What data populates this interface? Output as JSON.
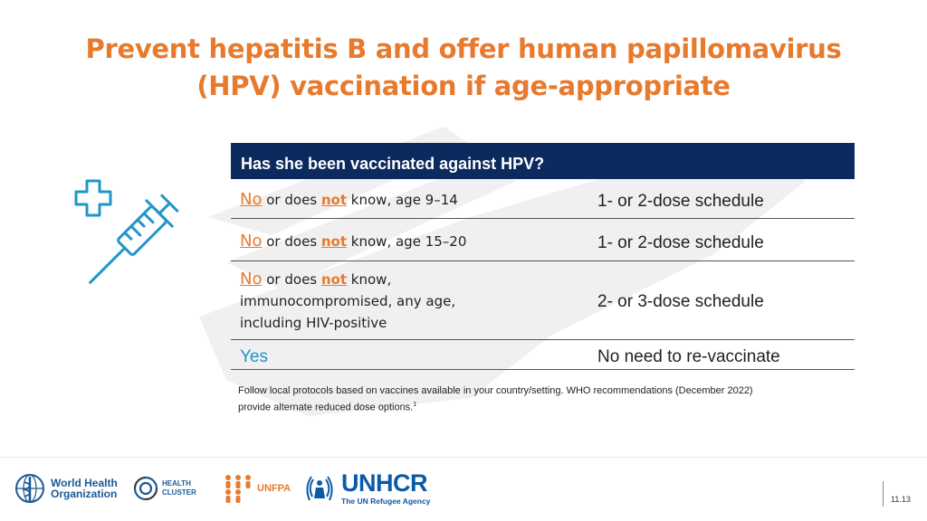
{
  "slide": {
    "title_line1": "Prevent hepatitis B and offer human papillomavirus",
    "title_line2": "(HPV) vaccination if age-appropriate",
    "accent_color": "#e87a2e",
    "header_color": "#0d2a5e",
    "page_number": "11.13"
  },
  "table": {
    "header": "Has she been vaccinated against HPV?",
    "rows": [
      {
        "no": "No",
        "mid": " or does ",
        "not": "not",
        "rest": " know, age 9–14",
        "schedule": "1- or 2-dose schedule"
      },
      {
        "no": "No",
        "mid": " or does ",
        "not": "not",
        "rest": " know, age 15–20",
        "schedule": "1- or 2-dose schedule"
      },
      {
        "no": "No",
        "mid": " or does ",
        "not": "not",
        "rest_line1": " know,",
        "rest_line2": "immunocompromised, any age,",
        "rest_line3": "including HIV-positive",
        "schedule": "2- or 3-dose schedule"
      },
      {
        "yes": "Yes",
        "schedule": "No need to re-vaccinate"
      }
    ]
  },
  "footnote": {
    "line1": "Follow local protocols based on vaccines available in your country/setting. WHO recommendations (December 2022)",
    "line2": "provide alternate reduced dose options.",
    "superscript": "1"
  },
  "logos": {
    "who_line1": "World Health",
    "who_line2": "Organization",
    "health_cluster_line1": "HEALTH",
    "health_cluster_line2": "CLUSTER",
    "unfpa": "UNFPA",
    "unhcr": "UNHCR",
    "unhcr_tagline": "The UN Refugee Agency"
  },
  "icons": [
    "medical-cross-icon",
    "syringe-icon",
    "hand-watermark",
    "who-emblem",
    "health-cluster-emblem",
    "unfpa-emblem",
    "unhcr-emblem"
  ]
}
